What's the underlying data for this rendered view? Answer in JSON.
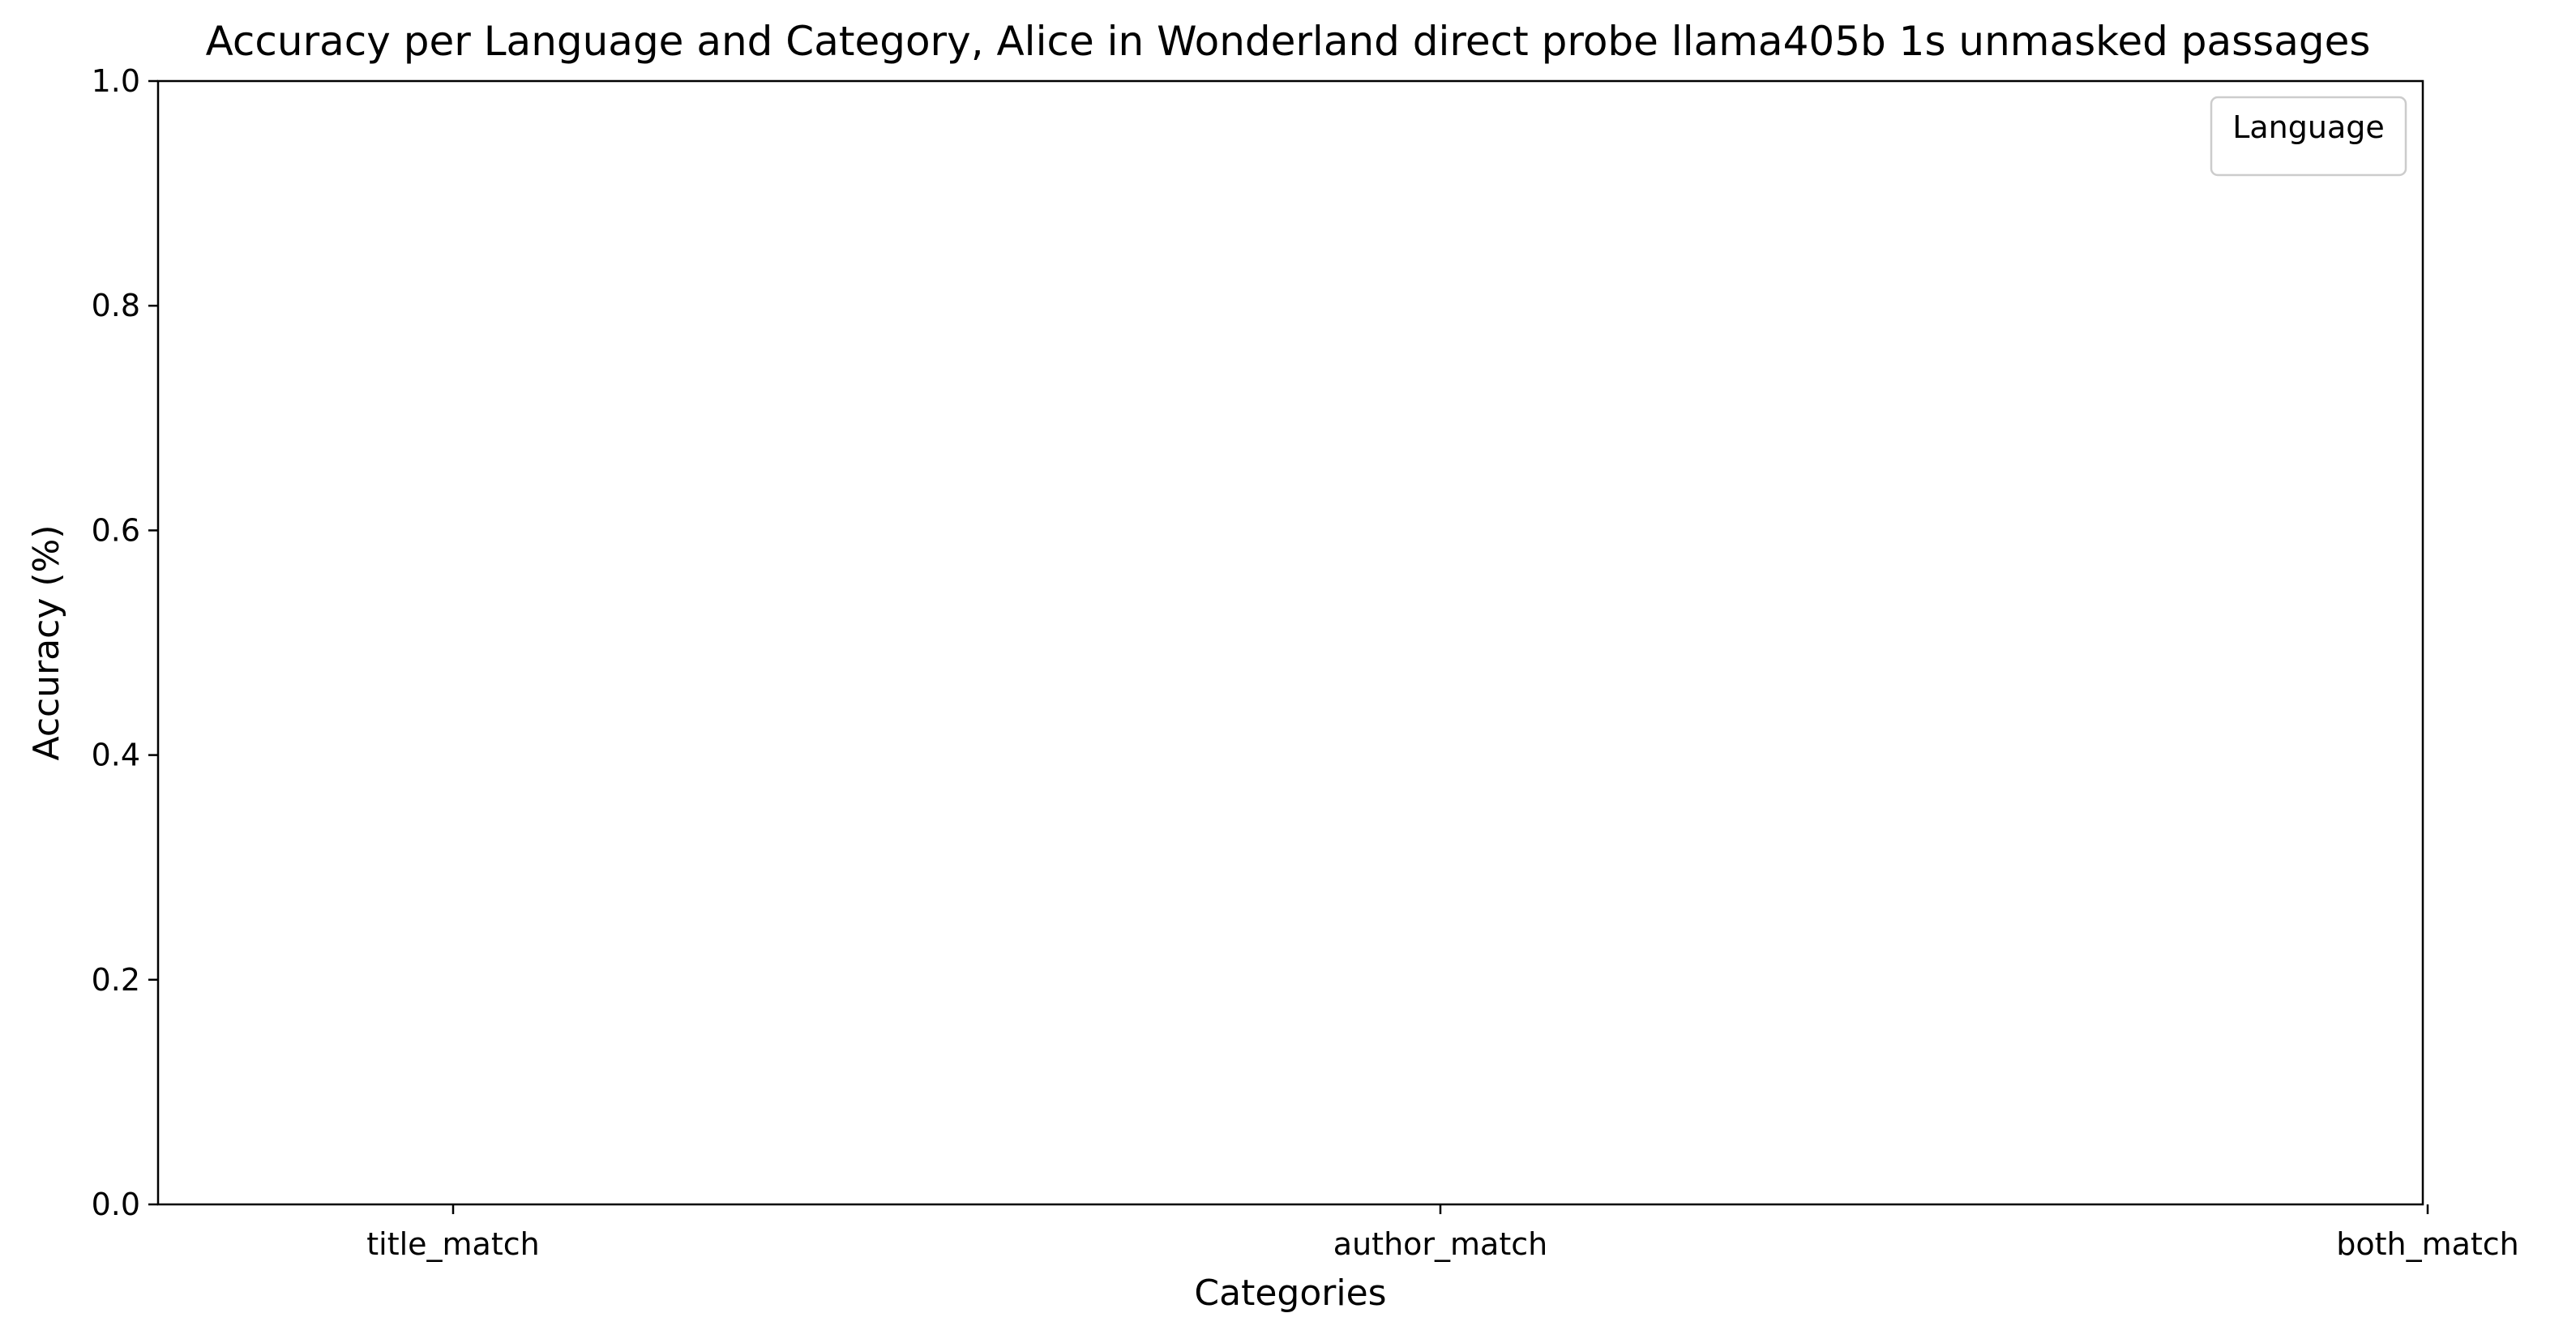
{
  "chart_data": {
    "type": "bar",
    "title": "Accuracy per Language and Category, Alice in Wonderland direct probe llama405b 1s unmasked passages",
    "xlabel": "Categories",
    "ylabel": "Accuracy (%)",
    "categories": [
      "title_match",
      "author_match",
      "both_match"
    ],
    "series": [],
    "ylim": [
      0,
      1.0
    ],
    "yticks": [
      "0.0",
      "0.2",
      "0.4",
      "0.6",
      "0.8",
      "1.0"
    ],
    "grid": false,
    "legend": {
      "title": "Language",
      "placement": "top-right",
      "entries": []
    }
  },
  "colors": {
    "axis": "#000000",
    "background": "#ffffff",
    "legend_border": "#cccccc"
  }
}
